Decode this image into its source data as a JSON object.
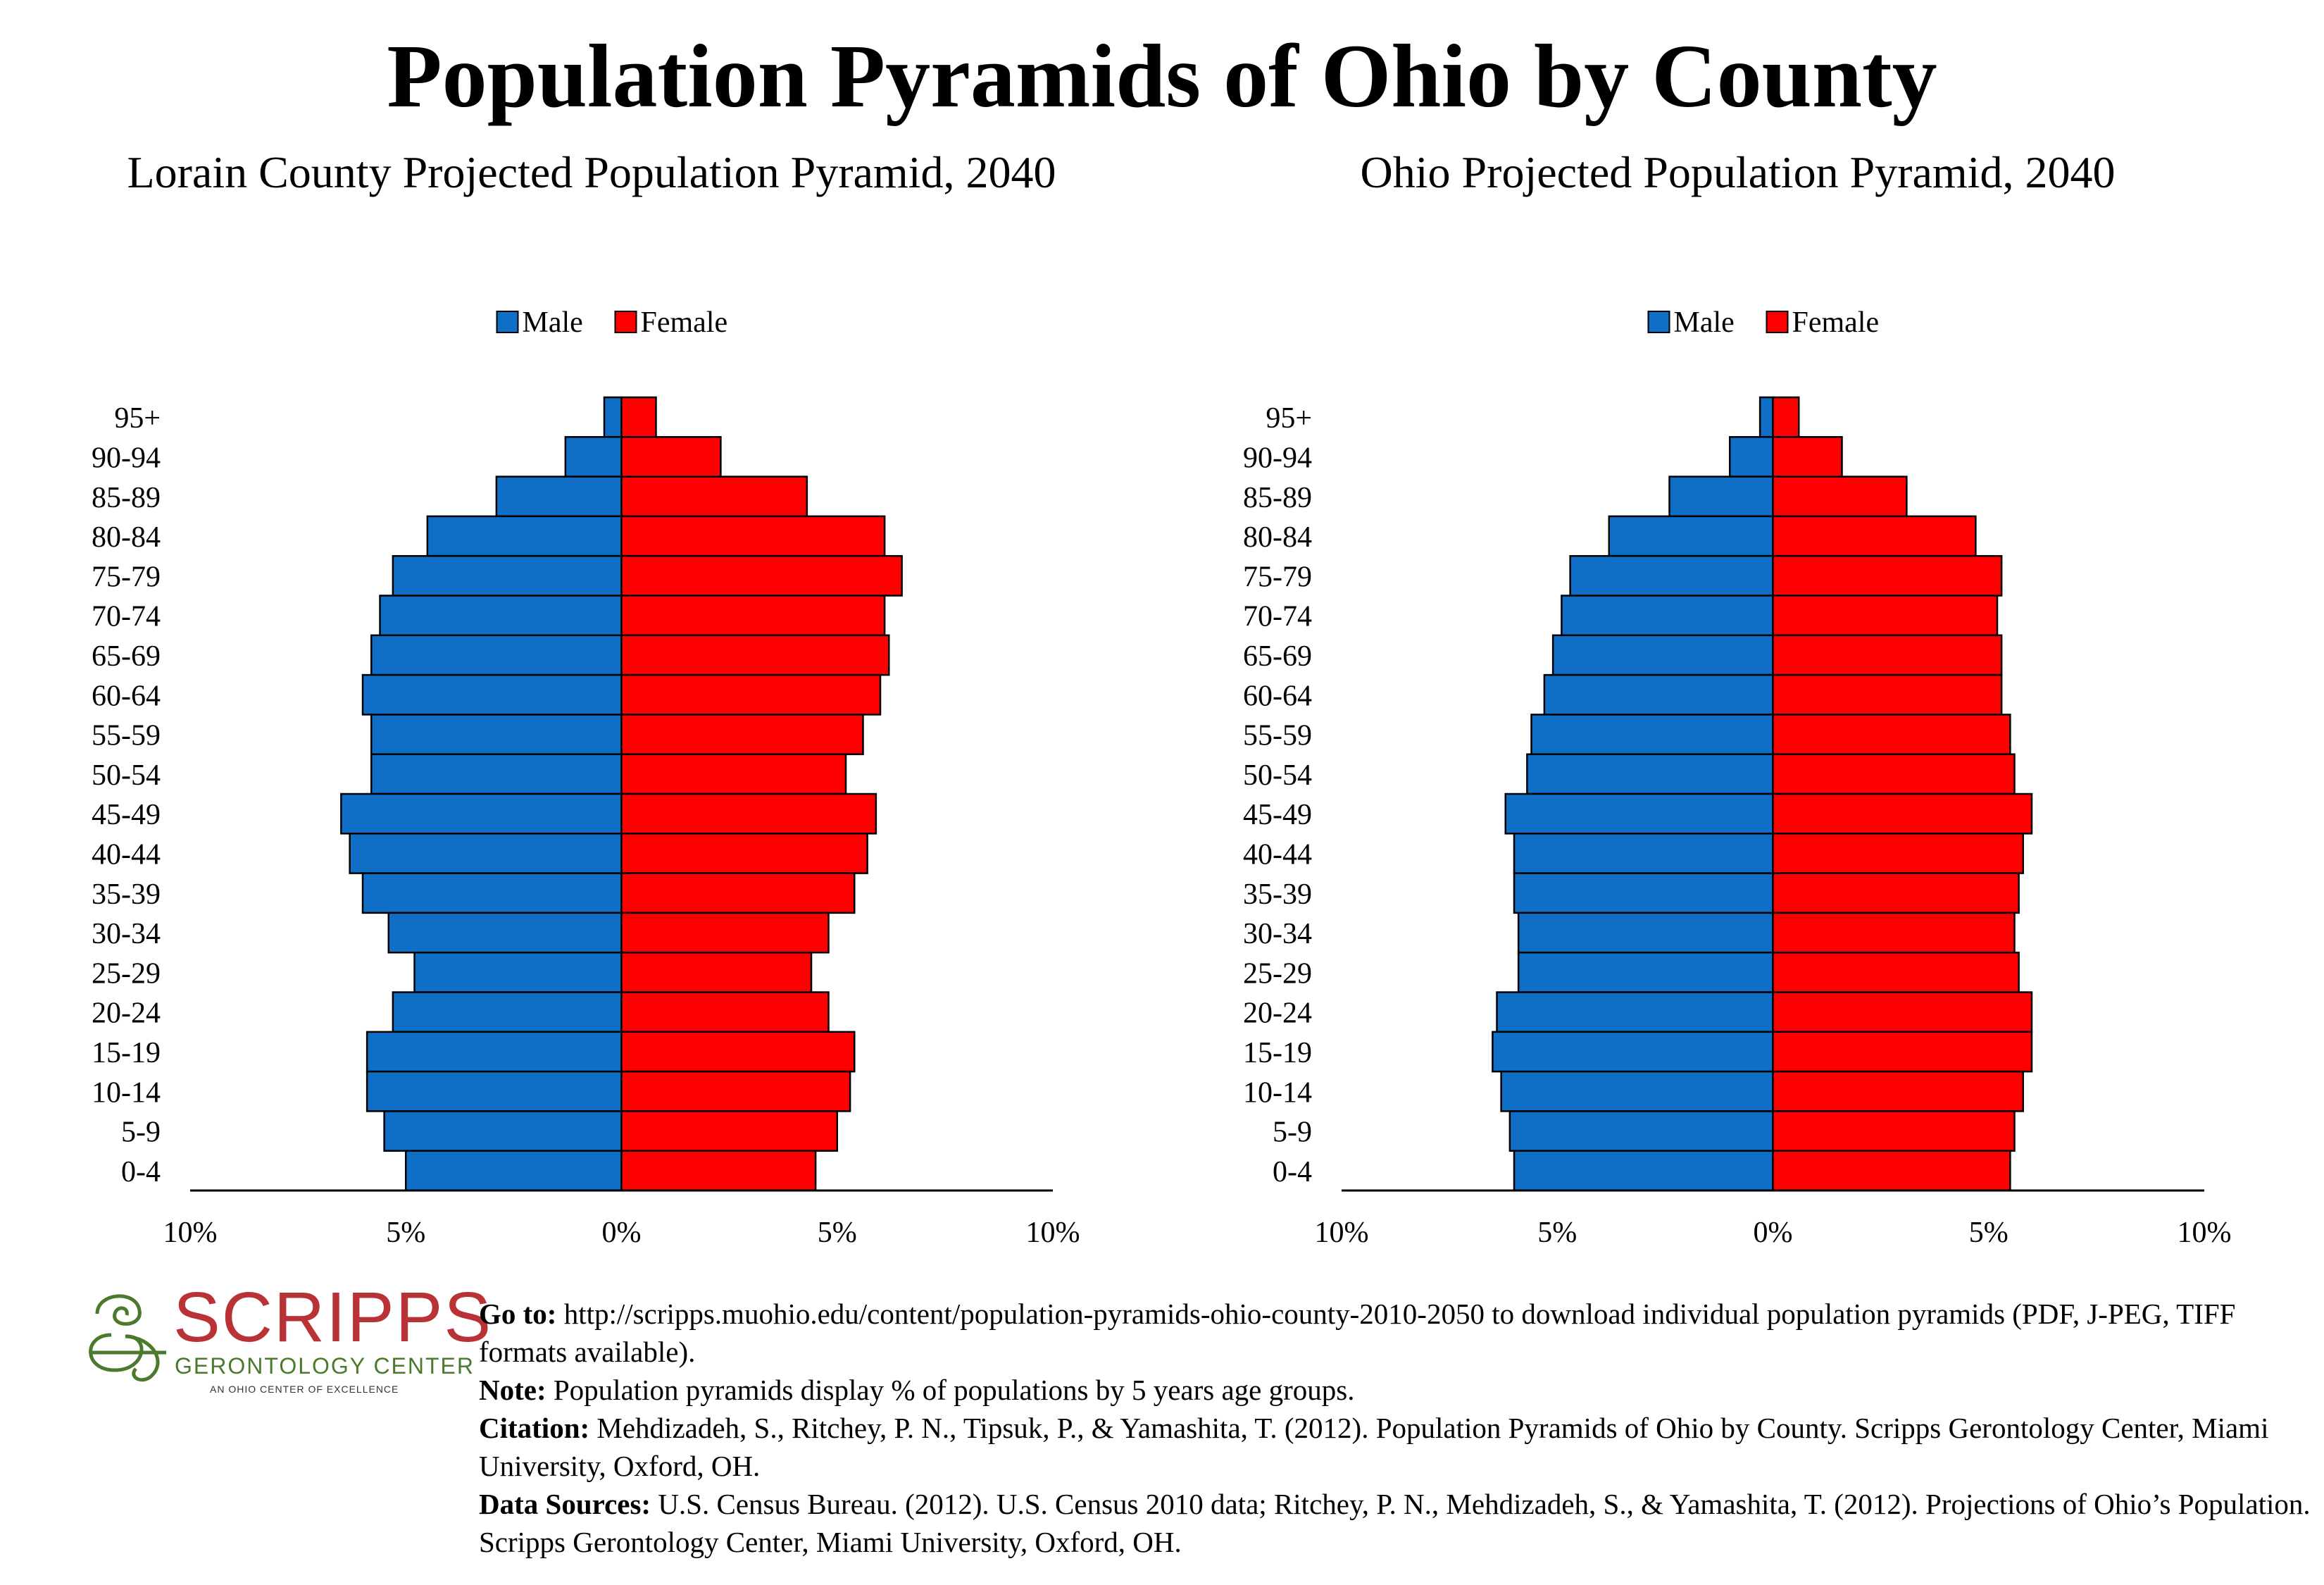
{
  "page": {
    "title": "Population Pyramids of Ohio by County"
  },
  "chart_data": [
    {
      "type": "bar",
      "orientation": "horizontal-pyramid",
      "title": "Lorain County Projected Population Pyramid, 2040",
      "categories": [
        "95+",
        "90-94",
        "85-89",
        "80-84",
        "75-79",
        "70-74",
        "65-69",
        "60-64",
        "55-59",
        "50-54",
        "45-49",
        "40-44",
        "35-39",
        "30-34",
        "25-29",
        "20-24",
        "15-19",
        "10-14",
        "5-9",
        "0-4"
      ],
      "series": [
        {
          "name": "Male",
          "color": "#0f6fc6",
          "values": [
            0.4,
            1.3,
            2.9,
            4.5,
            5.3,
            5.6,
            5.8,
            6.0,
            5.8,
            5.8,
            6.5,
            6.3,
            6.0,
            5.4,
            4.8,
            5.3,
            5.9,
            5.9,
            5.5,
            5.0
          ]
        },
        {
          "name": "Female",
          "color": "#ff0000",
          "values": [
            0.8,
            2.3,
            4.3,
            6.1,
            6.5,
            6.1,
            6.2,
            6.0,
            5.6,
            5.2,
            5.9,
            5.7,
            5.4,
            4.8,
            4.4,
            4.8,
            5.4,
            5.3,
            5.0,
            4.5
          ]
        }
      ],
      "xlim": [
        -10,
        10
      ],
      "xticks": [
        "10%",
        "5%",
        "0%",
        "5%",
        "10%"
      ],
      "legend": "top-center",
      "grid": false
    },
    {
      "type": "bar",
      "orientation": "horizontal-pyramid",
      "title": "Ohio Projected Population Pyramid, 2040",
      "categories": [
        "95+",
        "90-94",
        "85-89",
        "80-84",
        "75-79",
        "70-74",
        "65-69",
        "60-64",
        "55-59",
        "50-54",
        "45-49",
        "40-44",
        "35-39",
        "30-34",
        "25-29",
        "20-24",
        "15-19",
        "10-14",
        "5-9",
        "0-4"
      ],
      "series": [
        {
          "name": "Male",
          "color": "#0f6fc6",
          "values": [
            0.3,
            1.0,
            2.4,
            3.8,
            4.7,
            4.9,
            5.1,
            5.3,
            5.6,
            5.7,
            6.2,
            6.0,
            6.0,
            5.9,
            5.9,
            6.4,
            6.5,
            6.3,
            6.1,
            6.0
          ]
        },
        {
          "name": "Female",
          "color": "#ff0000",
          "values": [
            0.6,
            1.6,
            3.1,
            4.7,
            5.3,
            5.2,
            5.3,
            5.3,
            5.5,
            5.6,
            6.0,
            5.8,
            5.7,
            5.6,
            5.7,
            6.0,
            6.0,
            5.8,
            5.6,
            5.5
          ]
        }
      ],
      "xlim": [
        -10,
        10
      ],
      "xticks": [
        "10%",
        "5%",
        "0%",
        "5%",
        "10%"
      ],
      "legend": "top-center",
      "grid": false
    }
  ],
  "logo": {
    "word": "SCRIPPS",
    "sub": "GERONTOLOGY CENTER",
    "tag": "AN OHIO CENTER OF EXCELLENCE",
    "colors": {
      "word": "#b83236",
      "sub": "#4a7a2c"
    }
  },
  "notes": {
    "goto_label": "Go to:",
    "goto_text": " http://scripps.muohio.edu/content/population-pyramids-ohio-county-2010-2050 to download individual population pyramids (PDF, J-PEG, TIFF formats available).",
    "note_label": "Note:",
    "note_text": " Population pyramids display % of populations by 5 years age groups.",
    "citation_label": "Citation:",
    "citation_text": " Mehdizadeh, S., Ritchey, P. N., Tipsuk, P., & Yamashita, T. (2012). Population Pyramids of Ohio by County. Scripps Gerontology Center, Miami University, Oxford, OH.",
    "sources_label": "Data Sources:",
    "sources_text": " U.S. Census Bureau. (2012). U.S. Census 2010 data; Ritchey, P. N., Mehdizadeh, S., & Yamashita, T. (2012). Projections of Ohio’s Population. Scripps Gerontology Center, Miami University, Oxford, OH."
  }
}
